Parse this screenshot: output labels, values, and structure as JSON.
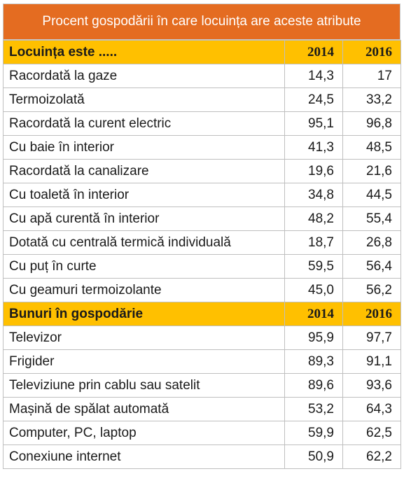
{
  "title": "Procent gospodării în care locuința are aceste atribute",
  "colors": {
    "title_bg": "#E46C21",
    "header_bg": "#FFC000"
  },
  "sections": [
    {
      "header": {
        "label": "Locuința este .....",
        "col1": "2014",
        "col2": "2016"
      },
      "rows": [
        {
          "label": "Racordată la gaze",
          "v2014": "14,3",
          "v2016": "17"
        },
        {
          "label": "Termoizolată",
          "v2014": "24,5",
          "v2016": "33,2"
        },
        {
          "label": "Racordată la curent electric",
          "v2014": "95,1",
          "v2016": "96,8"
        },
        {
          "label": "Cu baie în interior",
          "v2014": "41,3",
          "v2016": "48,5"
        },
        {
          "label": "Racordată la canalizare",
          "v2014": "19,6",
          "v2016": "21,6"
        },
        {
          "label": "Cu toaletă în interior",
          "v2014": "34,8",
          "v2016": "44,5"
        },
        {
          "label": "Cu apă curentă în interior",
          "v2014": "48,2",
          "v2016": "55,4"
        },
        {
          "label": "Dotată cu centrală termică individuală",
          "v2014": "18,7",
          "v2016": "26,8"
        },
        {
          "label": "Cu puț în curte",
          "v2014": "59,5",
          "v2016": "56,4"
        },
        {
          "label": "Cu geamuri termoizolante",
          "v2014": "45,0",
          "v2016": "56,2"
        }
      ]
    },
    {
      "header": {
        "label": "Bunuri în gospodărie",
        "col1": "2014",
        "col2": "2016"
      },
      "rows": [
        {
          "label": "Televizor",
          "v2014": "95,9",
          "v2016": "97,7"
        },
        {
          "label": "Frigider",
          "v2014": "89,3",
          "v2016": "91,1"
        },
        {
          "label": "Televiziune prin cablu sau satelit",
          "v2014": "89,6",
          "v2016": "93,6"
        },
        {
          "label": "Mașină de spălat automată",
          "v2014": "53,2",
          "v2016": "64,3"
        },
        {
          "label": "Computer, PC, laptop",
          "v2014": "59,9",
          "v2016": "62,5"
        },
        {
          "label": "Conexiune internet",
          "v2014": "50,9",
          "v2016": "62,2"
        }
      ]
    }
  ]
}
